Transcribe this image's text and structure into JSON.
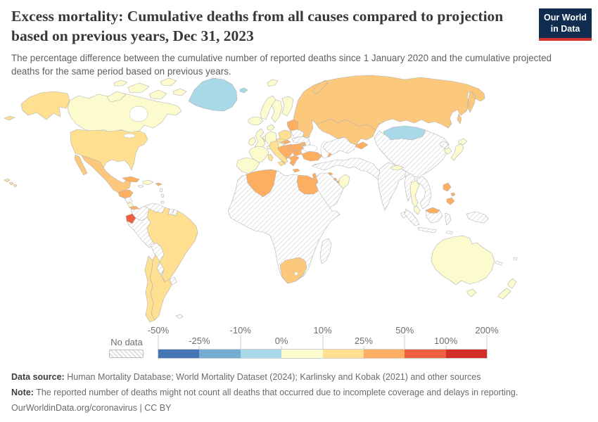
{
  "header": {
    "title": "Excess mortality: Cumulative deaths from all causes compared to projection based on previous years, Dec 31, 2023",
    "subtitle": "The percentage difference between the cumulative number of reported deaths since 1 January 2020 and the cumulative projected deaths for the same period based on previous years."
  },
  "logo": {
    "line1": "Our World",
    "line2": "in Data",
    "bg": "#102d50",
    "accent": "#d0342c"
  },
  "legend": {
    "no_data_label": "No data",
    "ticks": [
      {
        "label": "-50%"
      },
      {
        "label": "-25%"
      },
      {
        "label": "-10%"
      },
      {
        "label": "0%"
      },
      {
        "label": "10%"
      },
      {
        "label": "25%"
      },
      {
        "label": "50%"
      },
      {
        "label": "100%"
      },
      {
        "label": "200%"
      }
    ],
    "bins": [
      {
        "range": "-50% to -25%",
        "color": "#4575b4"
      },
      {
        "range": "-25% to -10%",
        "color": "#74add1"
      },
      {
        "range": "-10% to 0%",
        "color": "#a9d8e8"
      },
      {
        "range": "0% to 10%",
        "color": "#fbfbce"
      },
      {
        "range": "10% to 25%",
        "color": "#fee090"
      },
      {
        "range": "25% to 50%",
        "color": "#fdae61"
      },
      {
        "range": "50% to 100%",
        "color": "#ee6140"
      },
      {
        "range": "100% to 200%",
        "color": "#d32f27"
      }
    ]
  },
  "footer": {
    "data_source_label": "Data source:",
    "data_source": "Human Mortality Database; World Mortality Dataset (2024); Karlinsky and Kobak (2021) and other sources",
    "note_label": "Note:",
    "note": "The reported number of deaths might not count all deaths that occurred due to incomplete coverage and delays in reporting.",
    "link": "OurWorldinData.org/coronavirus | CC BY"
  },
  "map": {
    "fills": {
      "hawaii": "#fee090",
      "aleutians": "#fee090",
      "alaska": "#fee090",
      "usa": "#fee090",
      "canada": "#fbfbce",
      "arctic-islands": "#fbfbce",
      "greenland": "#a9d8e8",
      "svalbard": "#fbfbce",
      "mexico": "#fcc87b",
      "guatemala-honduras": "#fdae61",
      "nicaragua": "no-data",
      "costa-rica": "#fbfbce",
      "panama": "#fdae61",
      "cuba": "#fdae61",
      "jamaica": "no-data",
      "hispaniola": "#fbfbce",
      "puerto-rico": "#fdae61",
      "lesser-antilles": "no-data",
      "colombia": "no-data",
      "venezuela": "no-data",
      "guyana": "#fbfbce",
      "suriname": "no-data",
      "french-guiana": "no-data",
      "ecuador": "#ee6140",
      "peru": "no-data",
      "brazil": "#fee090",
      "bolivia": "no-data",
      "paraguay": "no-data",
      "uruguay": "no-data",
      "argentina": "#fee090",
      "chile": "#fee090",
      "falklands": "no-data",
      "iceland": "#fbfbce",
      "norway": "#fbfbce",
      "sweden": "#fbfbce",
      "finland": "#fbfbce",
      "denmark": "#fbfbce",
      "uk": "#fbfbce",
      "ireland": "#fbfbce",
      "benelux": "#fbfbce",
      "germany": "#fbfbce",
      "france": "#fbfbce",
      "iberia": "#fbfbce",
      "switzerland": "#fbfbce",
      "austria": "#fbfbce",
      "czechia": "#fee090",
      "poland": "#fee090",
      "slovakia": "#fdae61",
      "hungary": "#fdae61",
      "balkans": "#fdae61",
      "greece": "#fdae61",
      "bulgaria": "#fdae61",
      "romania": "#fdae61",
      "moldova": "#fdae61",
      "ukraine": "no-data",
      "belarus": "no-data",
      "baltics": "#fdae61",
      "italy": "#fee090",
      "turkey": "#fdae61",
      "cyprus": "#fdae61",
      "caucasus": "#fdae61",
      "russia": "#fcc87b",
      "kazakhstan": "#fcc87b",
      "central-asia": "no-data",
      "kyrgyzstan": "#fdae61",
      "mongolia": "#a9d8e8",
      "china": "no-data",
      "north-korea": "no-data",
      "south-korea": "#fbfbce",
      "japan": "#fbfbce",
      "india": "no-data",
      "nepal": "#fbfbce",
      "sri-lanka": "no-data",
      "middle-east-north": "no-data",
      "arabia": "no-data",
      "israel-jordan": "#fdae61",
      "gulf-states": "#fdae61",
      "oman": "#fbfbce",
      "myanmar": "no-data",
      "thailand": "#fbfbce",
      "indochina": "no-data",
      "malaysia": "#fbfbce",
      "sumatra": "no-data",
      "borneo": "no-data",
      "east-malaysia": "#fdae61",
      "java": "no-data",
      "sulawesi": "no-data",
      "timor": "no-data",
      "new-guinea": "no-data",
      "philippines": "#fdae61",
      "australia": "#fbfbce",
      "tasmania": "#fbfbce",
      "new-zealand": "#fbfbce",
      "new-caledonia": "no-data",
      "fiji": "no-data",
      "africa": "no-data",
      "algeria": "#fdae61",
      "egypt": "#fdae61",
      "south-africa": "#fcc87b",
      "madagascar": "no-data"
    }
  },
  "chart_data": {
    "type": "choropleth",
    "title": "Excess mortality: Cumulative deaths from all causes compared to projection based on previous years",
    "date": "Dec 31, 2023",
    "unit": "%",
    "legend_ticks": [
      "-50%",
      "-25%",
      "-10%",
      "0%",
      "10%",
      "25%",
      "50%",
      "100%",
      "200%"
    ],
    "bins": [
      {
        "range": "-50% to -25%",
        "color": "#4575b4"
      },
      {
        "range": "-25% to -10%",
        "color": "#74add1"
      },
      {
        "range": "-10% to 0%",
        "color": "#a9d8e8"
      },
      {
        "range": "0% to 10%",
        "color": "#fbfbce"
      },
      {
        "range": "10% to 25%",
        "color": "#fee090"
      },
      {
        "range": "25% to 50%",
        "color": "#fdae61"
      },
      {
        "range": "50% to 100%",
        "color": "#ee6140"
      },
      {
        "range": "100% to 200%",
        "color": "#d32f27"
      }
    ],
    "values_by_bin": {
      "-10% to 0%": [
        "Greenland",
        "Mongolia"
      ],
      "0% to 10%": [
        "Canada",
        "Iceland",
        "Norway",
        "Sweden",
        "Finland",
        "Denmark",
        "United Kingdom",
        "Ireland",
        "France",
        "Spain",
        "Portugal",
        "Germany",
        "Netherlands",
        "Belgium",
        "Switzerland",
        "Austria",
        "Costa Rica",
        "Guyana",
        "Oman",
        "Nepal",
        "Japan",
        "South Korea",
        "Thailand",
        "Malaysia",
        "Australia",
        "New Zealand"
      ],
      "10% to 25%": [
        "United States",
        "Brazil",
        "Argentina",
        "Chile",
        "Italy",
        "Poland",
        "Czechia"
      ],
      "25% to 50%": [
        "Russia",
        "Kazakhstan",
        "Mexico",
        "South Africa",
        "Algeria",
        "Egypt",
        "Turkey",
        "Greece",
        "Bulgaria",
        "Romania",
        "Hungary",
        "Slovakia",
        "Moldova",
        "Baltic states",
        "Balkan countries",
        "Caucasus countries",
        "Kyrgyzstan",
        "Philippines",
        "Cuba",
        "Puerto Rico",
        "Guatemala",
        "Honduras",
        "Panama",
        "Israel and Jordan",
        "Gulf states"
      ],
      "50% to 100%": [
        "Ecuador"
      ],
      "no data": [
        "China",
        "India",
        "most of Africa",
        "Saudi Arabia",
        "Iran",
        "Iraq",
        "Syria",
        "Yemen",
        "Uzbekistan",
        "Turkmenistan",
        "Afghanistan",
        "Pakistan",
        "Myanmar",
        "Vietnam",
        "Laos",
        "Cambodia",
        "Indonesia",
        "Papua New Guinea",
        "Morocco",
        "Tunisia",
        "Libya",
        "Sudan",
        "Colombia",
        "Venezuela",
        "Peru",
        "Bolivia",
        "Paraguay",
        "Uruguay",
        "Nicaragua",
        "North Korea",
        "Ukraine",
        "Belarus",
        "Madagascar",
        "Sri Lanka"
      ]
    }
  }
}
